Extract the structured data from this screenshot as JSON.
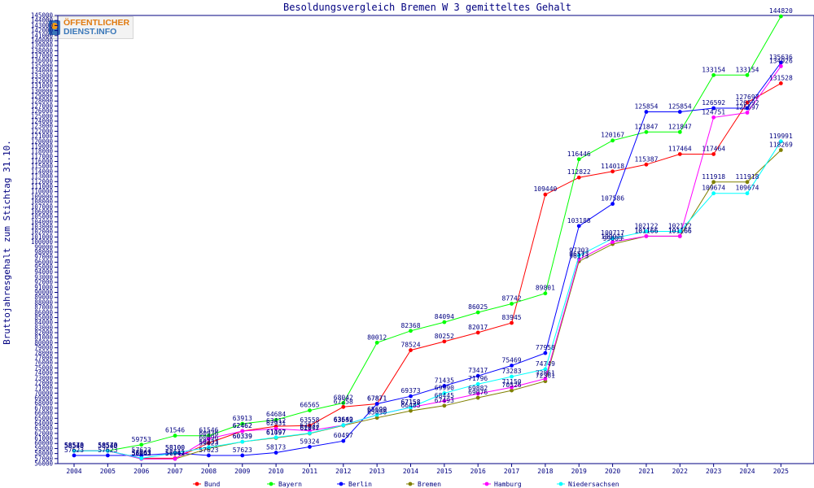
{
  "chart_data": {
    "type": "line",
    "title": "Besoldungsvergleich Bremen W 3 gemitteltes Gehalt",
    "ylabel": "Bruttojahresgehalt zum Stichtag 31.10.",
    "xlabel": "",
    "ylim": [
      56000,
      145000
    ],
    "ytick_step": 1000,
    "grid": false,
    "legend_position": "bottom",
    "x": [
      "2004",
      "2005",
      "2006",
      "2007",
      "2008",
      "2009",
      "2010",
      "2011",
      "2012",
      "2013",
      "2014",
      "2015",
      "2016",
      "2017",
      "2018",
      "2019",
      "2020",
      "2021",
      "2022",
      "2023",
      "2024",
      "2025"
    ],
    "series": [
      {
        "name": "Bund",
        "color": "#ff0000",
        "values": [
          58543,
          58543,
          57063,
          57063,
          60096,
          62462,
          63412,
          63558,
          67258,
          67871,
          78524,
          80252,
          82017,
          83945,
          109440,
          112822,
          114018,
          115387,
          117464,
          117464,
          127697,
          131528
        ]
      },
      {
        "name": "Bayern",
        "color": "#00ff00",
        "values": [
          58540,
          58540,
          59753,
          61546,
          61546,
          63913,
          64684,
          66565,
          68042,
          80012,
          82368,
          84094,
          86025,
          87742,
          89801,
          116446,
          120167,
          121847,
          121847,
          133154,
          133154,
          144820
        ]
      },
      {
        "name": "Berlin",
        "color": "#0000ff",
        "values": [
          57623,
          57623,
          57623,
          58100,
          57623,
          57623,
          58173,
          59324,
          60497,
          67871,
          69373,
          71435,
          73417,
          75469,
          77958,
          103188,
          107586,
          125854,
          125854,
          126592,
          126592,
          135636
        ]
      },
      {
        "name": "Bremen",
        "color": "#808000",
        "values": [
          58573,
          58573,
          56942,
          56942,
          59023,
          60339,
          61097,
          61977,
          63559,
          65090,
          66485,
          67493,
          69076,
          70526,
          72361,
          96173,
          99603,
          101166,
          101166,
          111918,
          111918,
          118269
        ]
      },
      {
        "name": "Hamburg",
        "color": "#ff00ff",
        "values": [
          58540,
          58540,
          56942,
          56942,
          60936,
          62462,
          62931,
          62532,
          63642,
          65699,
          67158,
          68445,
          69882,
          71150,
          72861,
          96573,
          100011,
          101166,
          101166,
          124751,
          125697,
          134926
        ]
      },
      {
        "name": "Niedersachsen",
        "color": "#00ffff",
        "values": [
          58540,
          58540,
          57063,
          58100,
          59233,
          60339,
          61197,
          62042,
          63642,
          65690,
          67158,
          69990,
          71796,
          73283,
          74749,
          97303,
          100717,
          102122,
          102122,
          109674,
          109674,
          119991
        ]
      }
    ]
  },
  "logo": {
    "line1": "ÖFFENTLICHER",
    "line2": "DIENST.INFO"
  }
}
